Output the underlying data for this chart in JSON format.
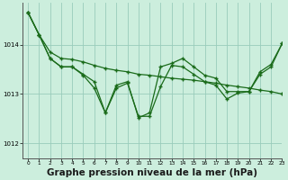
{
  "background_color": "#cceedd",
  "grid_color": "#99ccbb",
  "line_color": "#1a6b1a",
  "xlabel": "Graphe pression niveau de la mer (hPa)",
  "xlabel_fontsize": 7.5,
  "xlim": [
    -0.5,
    23
  ],
  "ylim": [
    1011.7,
    1014.85
  ],
  "yticks": [
    1012,
    1013,
    1014
  ],
  "xticks": [
    0,
    1,
    2,
    3,
    4,
    5,
    6,
    7,
    8,
    9,
    10,
    11,
    12,
    13,
    14,
    15,
    16,
    17,
    18,
    19,
    20,
    21,
    22,
    23
  ],
  "line_smooth": [
    1014.65,
    1014.2,
    1013.85,
    1013.72,
    1013.7,
    1013.65,
    1013.58,
    1013.52,
    1013.48,
    1013.45,
    1013.4,
    1013.38,
    1013.35,
    1013.32,
    1013.3,
    1013.28,
    1013.25,
    1013.22,
    1013.18,
    1013.15,
    1013.12,
    1013.08,
    1013.05,
    1013.0
  ],
  "line_v1": [
    1014.65,
    1014.2,
    1013.72,
    1013.55,
    1013.55,
    1013.4,
    1013.25,
    1012.62,
    1013.18,
    1013.25,
    1012.52,
    1012.62,
    1013.55,
    1013.62,
    1013.72,
    1013.55,
    1013.38,
    1013.32,
    1013.05,
    1013.05,
    1013.05,
    1013.45,
    1013.6,
    1014.02
  ],
  "line_v2": [
    1014.65,
    1014.2,
    1013.72,
    1013.55,
    1013.55,
    1013.38,
    1013.12,
    1012.62,
    1013.12,
    1013.22,
    1012.55,
    1012.55,
    1013.15,
    1013.58,
    1013.55,
    1013.4,
    1013.25,
    1013.18,
    1012.9,
    1013.02,
    1013.05,
    1013.4,
    1013.55,
    1014.02
  ]
}
